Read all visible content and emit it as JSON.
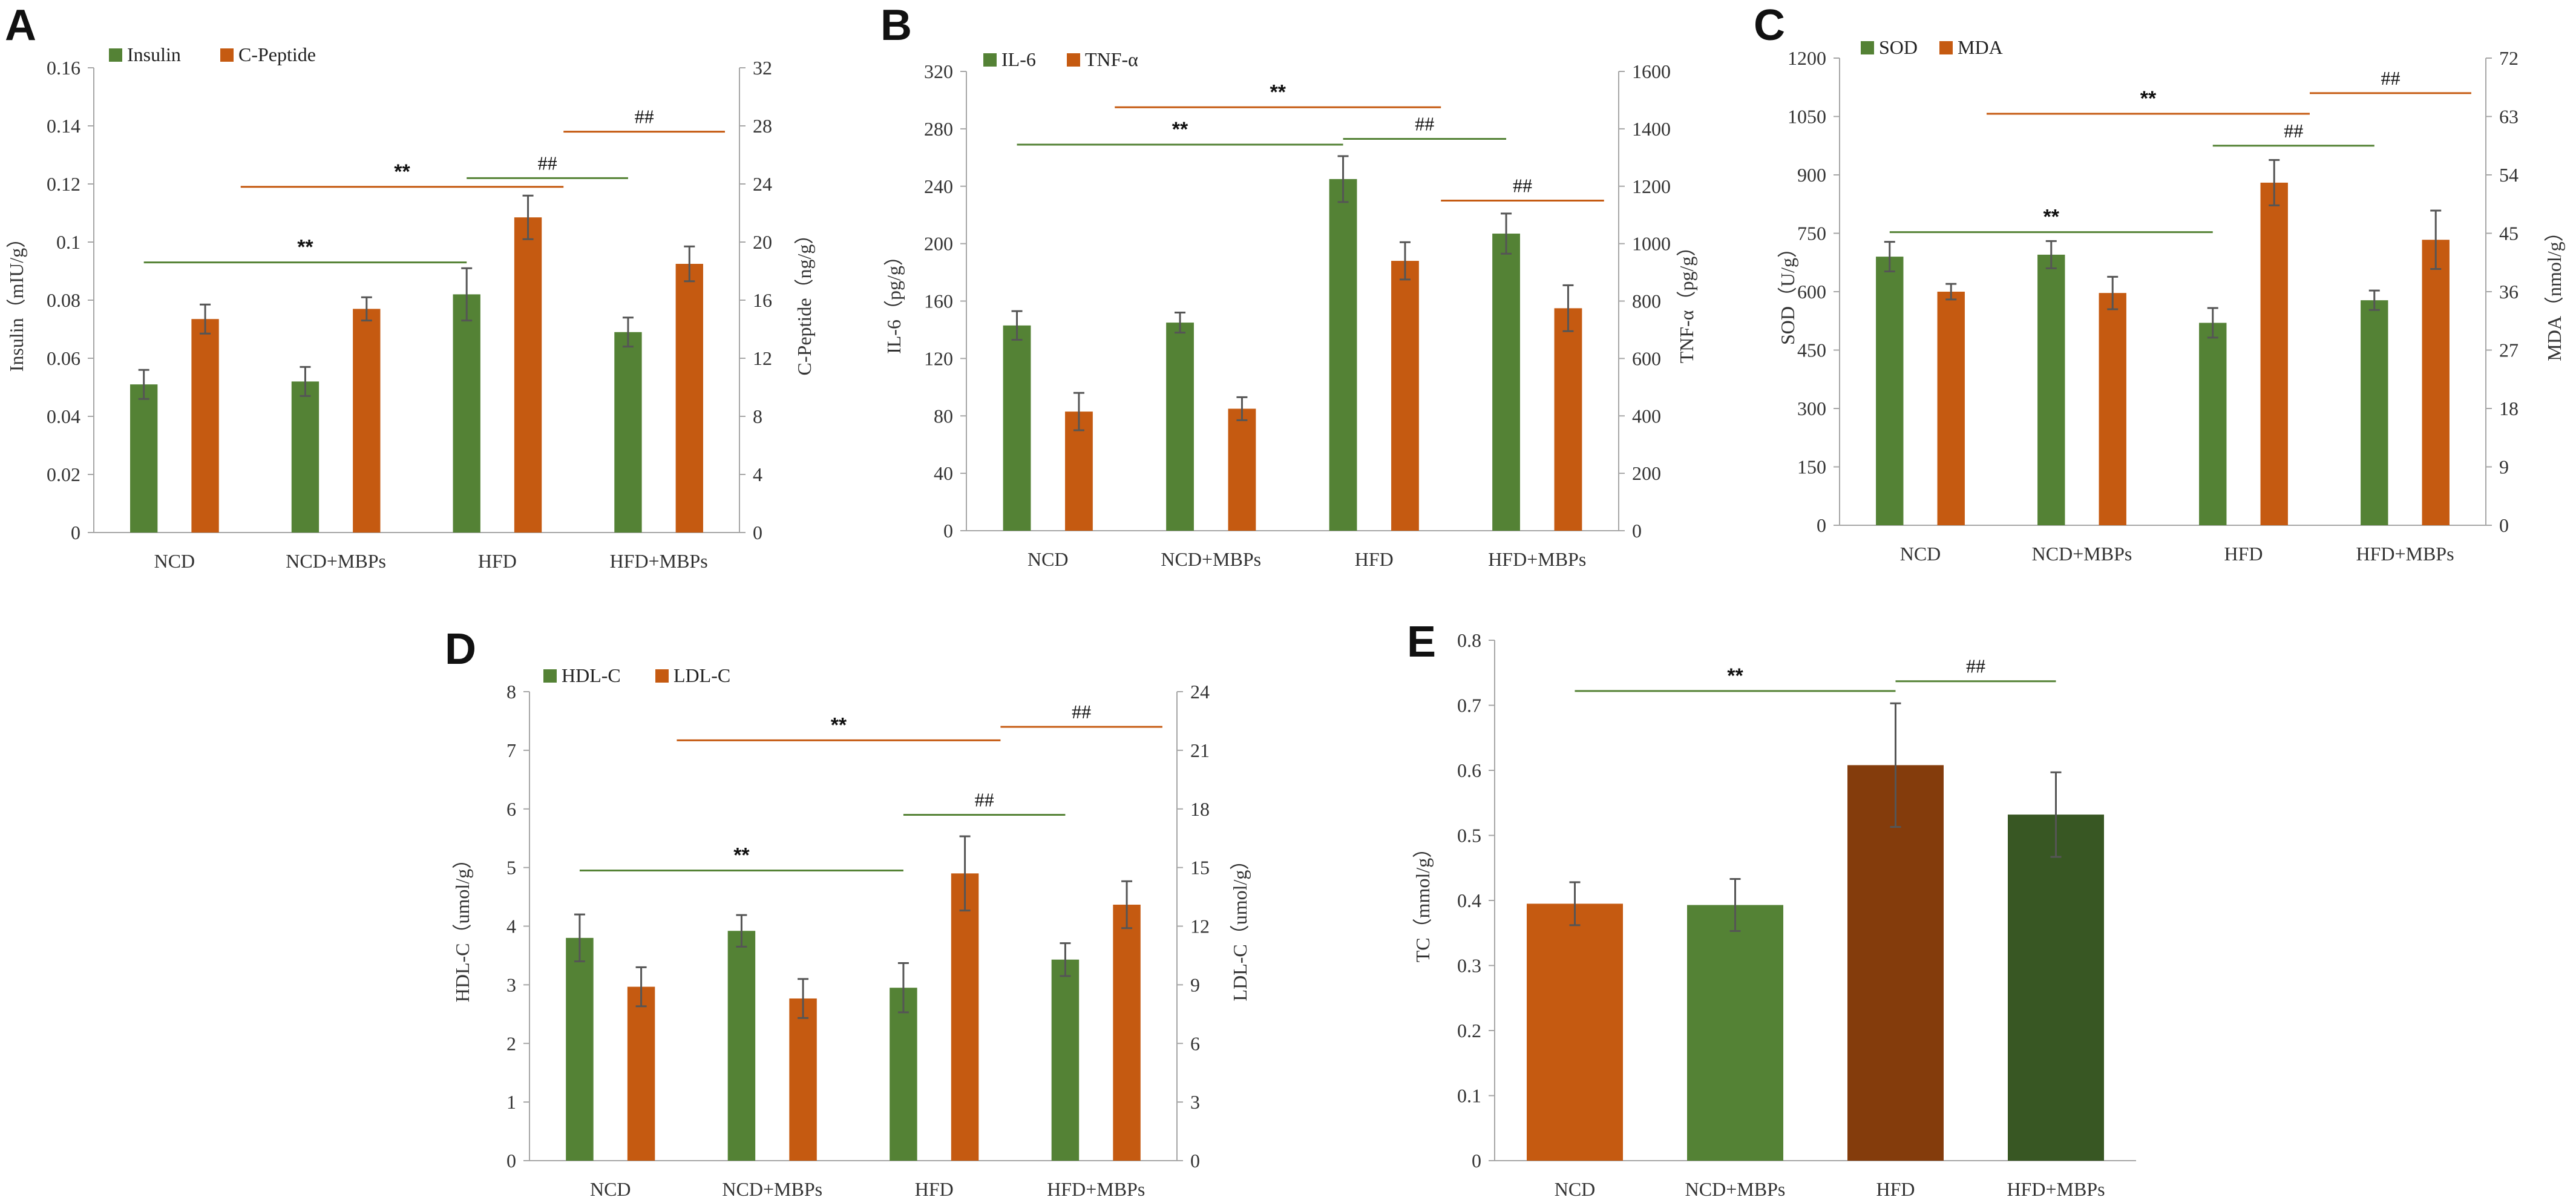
{
  "figure": {
    "colors": {
      "green": "#548235",
      "orange": "#C55A11",
      "dark_orange": "#843C0C",
      "dark_green": "#385723",
      "sig_green": "#548235",
      "sig_orange": "#C55A11"
    }
  },
  "chart_data": [
    {
      "id": "A",
      "letter": "A",
      "type": "bar",
      "categories": [
        "NCD",
        "NCD+MBPs",
        "HFD",
        "HFD+MBPs"
      ],
      "series": [
        {
          "name": "Insulin",
          "axis": "left",
          "color": "#548235",
          "values": [
            0.051,
            0.052,
            0.082,
            0.069
          ],
          "errors": [
            0.005,
            0.005,
            0.009,
            0.005
          ]
        },
        {
          "name": "C-Peptide",
          "axis": "right",
          "color": "#C55A11",
          "values": [
            14.7,
            15.4,
            21.7,
            18.5
          ],
          "errors": [
            1.0,
            0.8,
            1.5,
            1.2
          ]
        }
      ],
      "left_axis": {
        "label": "Insulin（mIU/g）",
        "min": 0,
        "max": 0.16,
        "ticks": [
          "0",
          "0.02",
          "0.04",
          "0.06",
          "0.08",
          "0.1",
          "0.12",
          "0.14",
          "0.16"
        ]
      },
      "right_axis": {
        "label": "C-Peptide（ng/g）",
        "min": 0,
        "max": 32,
        "ticks": [
          "0",
          "4",
          "8",
          "12",
          "16",
          "20",
          "24",
          "28",
          "32"
        ]
      },
      "significance": [
        {
          "text": "**",
          "color": "green",
          "from": 0,
          "to": 2,
          "level": 0.093
        },
        {
          "text": "**",
          "color": "orange",
          "from": 0.6,
          "to": 2.6,
          "level": 0.119
        },
        {
          "text": "##",
          "color": "green",
          "from": 2,
          "to": 3,
          "level": 0.122
        },
        {
          "text": "##",
          "color": "orange",
          "from": 2.6,
          "to": 3.6,
          "level": 0.138
        }
      ]
    },
    {
      "id": "B",
      "letter": "B",
      "type": "bar",
      "categories": [
        "NCD",
        "NCD+MBPs",
        "HFD",
        "HFD+MBPs"
      ],
      "series": [
        {
          "name": "IL-6",
          "axis": "left",
          "color": "#548235",
          "values": [
            143,
            145,
            245,
            207
          ],
          "errors": [
            10,
            7,
            16,
            14
          ]
        },
        {
          "name": "TNF-α",
          "axis": "right",
          "color": "#C55A11",
          "values": [
            415,
            425,
            940,
            775
          ],
          "errors": [
            65,
            40,
            65,
            80
          ]
        }
      ],
      "left_axis": {
        "label": "IL-6（pg/g）",
        "min": 0,
        "max": 320,
        "ticks": [
          "0",
          "40",
          "80",
          "120",
          "160",
          "200",
          "240",
          "280",
          "320"
        ]
      },
      "right_axis": {
        "label": "TNF-α（pg/g）",
        "min": 0,
        "max": 1600,
        "ticks": [
          "0",
          "200",
          "400",
          "600",
          "800",
          "1000",
          "1200",
          "1400",
          "1600"
        ]
      },
      "significance": [
        {
          "text": "**",
          "color": "green",
          "from": 0,
          "to": 2,
          "level": 269
        },
        {
          "text": "**",
          "color": "orange",
          "from": 0.6,
          "to": 2.6,
          "level": 295
        },
        {
          "text": "##",
          "color": "green",
          "from": 2,
          "to": 3,
          "level": 273
        },
        {
          "text": "##",
          "color": "orange",
          "from": 2.6,
          "to": 3.6,
          "level": 230
        }
      ]
    },
    {
      "id": "C",
      "letter": "C",
      "type": "bar",
      "categories": [
        "NCD",
        "NCD+MBPs",
        "HFD",
        "HFD+MBPs"
      ],
      "series": [
        {
          "name": "SOD",
          "axis": "left",
          "color": "#548235",
          "values": [
            690,
            695,
            520,
            578
          ],
          "errors": [
            38,
            35,
            38,
            25
          ]
        },
        {
          "name": "MDA",
          "axis": "right",
          "color": "#C55A11",
          "values": [
            36,
            35.8,
            52.8,
            44
          ],
          "errors": [
            1.2,
            2.5,
            3.5,
            4.5
          ]
        }
      ],
      "left_axis": {
        "label": "SOD（U/g）",
        "min": 0,
        "max": 1200,
        "ticks": [
          "0",
          "150",
          "300",
          "450",
          "600",
          "750",
          "900",
          "1050",
          "1200"
        ]
      },
      "right_axis": {
        "label": "MDA（nmol/g）",
        "min": 0,
        "max": 72,
        "ticks": [
          "0",
          "9",
          "18",
          "27",
          "36",
          "45",
          "54",
          "63",
          "72"
        ]
      },
      "significance": [
        {
          "text": "**",
          "color": "green",
          "from": 0,
          "to": 2,
          "level": 753
        },
        {
          "text": "**",
          "color": "orange",
          "from": 0.6,
          "to": 2.6,
          "level": 1057
        },
        {
          "text": "##",
          "color": "green",
          "from": 2,
          "to": 3,
          "level": 975
        },
        {
          "text": "##",
          "color": "orange",
          "from": 2.6,
          "to": 3.6,
          "level": 1110
        }
      ]
    },
    {
      "id": "D",
      "letter": "D",
      "type": "bar",
      "categories": [
        "NCD",
        "NCD+MBPs",
        "HFD",
        "HFD+MBPs"
      ],
      "series": [
        {
          "name": "HDL-C",
          "axis": "left",
          "color": "#548235",
          "values": [
            3.8,
            3.92,
            2.95,
            3.43
          ],
          "errors": [
            0.4,
            0.27,
            0.42,
            0.28
          ]
        },
        {
          "name": "LDL-C",
          "axis": "right",
          "color": "#C55A11",
          "values": [
            8.9,
            8.3,
            14.7,
            13.1
          ],
          "errors": [
            1.0,
            1.0,
            1.9,
            1.2
          ]
        }
      ],
      "left_axis": {
        "label": "HDL-C（umol/g）",
        "min": 0,
        "max": 8,
        "ticks": [
          "0",
          "1",
          "2",
          "3",
          "4",
          "5",
          "6",
          "7",
          "8"
        ]
      },
      "right_axis": {
        "label": "LDL-C（umol/g）",
        "min": 0,
        "max": 24,
        "ticks": [
          "0",
          "3",
          "6",
          "9",
          "12",
          "15",
          "18",
          "21",
          "24"
        ]
      },
      "significance": [
        {
          "text": "**",
          "color": "green",
          "from": 0,
          "to": 2,
          "level": 4.95
        },
        {
          "text": "**",
          "color": "orange",
          "from": 0.6,
          "to": 2.6,
          "level": 7.17
        },
        {
          "text": "##",
          "color": "green",
          "from": 2,
          "to": 3,
          "level": 5.9
        },
        {
          "text": "##",
          "color": "orange",
          "from": 2.6,
          "to": 3.6,
          "level": 7.4
        }
      ]
    },
    {
      "id": "E",
      "letter": "E",
      "type": "bar",
      "categories": [
        "NCD",
        "NCD+MBPs",
        "HFD",
        "HFD+MBPs"
      ],
      "series": [
        {
          "name": "TC",
          "axis": "left",
          "colors": [
            "#C55A11",
            "#548235",
            "#843C0C",
            "#385723"
          ],
          "values": [
            0.395,
            0.393,
            0.608,
            0.532
          ],
          "errors": [
            0.033,
            0.04,
            0.095,
            0.065
          ]
        }
      ],
      "left_axis": {
        "label": "TC（mmol/g）",
        "min": 0,
        "max": 0.8,
        "ticks": [
          "0",
          "0.1",
          "0.2",
          "0.3",
          "0.4",
          "0.5",
          "0.6",
          "0.7",
          "0.8"
        ]
      },
      "significance": [
        {
          "text": "**",
          "color": "green",
          "from": 0,
          "to": 2,
          "level": 0.722
        },
        {
          "text": "##",
          "color": "green",
          "from": 2,
          "to": 3,
          "level": 0.737
        }
      ]
    }
  ]
}
